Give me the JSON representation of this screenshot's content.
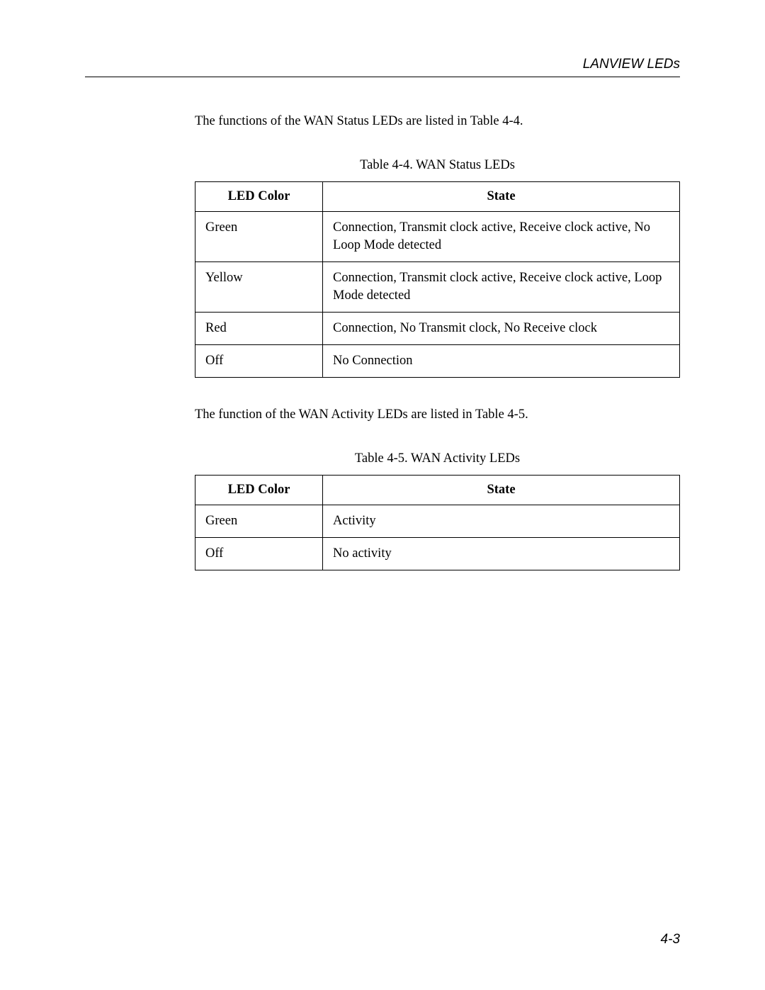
{
  "header": {
    "title": "LANVIEW LEDs"
  },
  "intro1": "The functions of the WAN Status LEDs are listed in Table 4-4.",
  "table1": {
    "caption": "Table 4-4.  WAN Status LEDs",
    "columns": [
      "LED Color",
      "State"
    ],
    "rows": [
      [
        "Green",
        "Connection, Transmit clock active, Receive clock active, No Loop Mode detected"
      ],
      [
        "Yellow",
        "Connection, Transmit clock active, Receive clock active, Loop Mode detected"
      ],
      [
        "Red",
        "Connection, No Transmit clock, No Receive clock"
      ],
      [
        "Off",
        "No Connection"
      ]
    ],
    "col_widths": [
      "180px",
      "auto"
    ],
    "border_color": "#000000",
    "background_color": "#ffffff",
    "font_size": 18.5
  },
  "intro2": "The function of the WAN Activity LEDs are listed in Table 4-5.",
  "table2": {
    "caption": "Table 4-5.  WAN Activity LEDs",
    "columns": [
      "LED Color",
      "State"
    ],
    "rows": [
      [
        "Green",
        "Activity"
      ],
      [
        "Off",
        "No activity"
      ]
    ],
    "col_widths": [
      "180px",
      "auto"
    ],
    "border_color": "#000000",
    "background_color": "#ffffff",
    "font_size": 18.5
  },
  "footer": {
    "page_number": "4-3"
  },
  "styles": {
    "page_bg": "#ffffff",
    "text_color": "#000000",
    "header_rule_color": "#000000",
    "body_font_size": 18.5,
    "header_font_size": 19,
    "footer_font_size": 19
  }
}
